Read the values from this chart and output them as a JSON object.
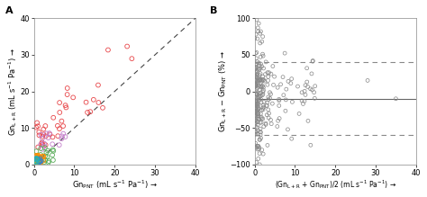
{
  "panel_A": {
    "label": "A",
    "xlabel": "Gn$_{\\mathrm{PNT}}$ (mL s$^{-1}$ Pa$^{-1}$) →",
    "ylabel": "Gn$_{\\mathrm{L+R}}$ (mL s$^{-1}$ Pa$^{-1}$) →",
    "xlim": [
      0,
      40
    ],
    "ylim": [
      0,
      40
    ],
    "xticks": [
      0,
      10,
      20,
      30,
      40
    ],
    "yticks": [
      0,
      10,
      20,
      30,
      40
    ]
  },
  "panel_B": {
    "label": "B",
    "xlabel": "(Gn$_{\\mathrm{L+R}}$ + Gn$_{\\mathrm{PNT}}$)/2 (mL s$^{-1}$ Pa$^{-1}$) →",
    "ylabel": "Gn$_{\\mathrm{L+R}}$ − Gn$_{\\mathrm{PNT}}$ (%) →",
    "xlim": [
      0,
      40
    ],
    "ylim": [
      -100,
      100
    ],
    "xticks": [
      0,
      10,
      20,
      30,
      40
    ],
    "yticks": [
      -100,
      -50,
      0,
      50,
      100
    ],
    "mean_line": -10,
    "upper_loa": 40,
    "lower_loa": -60
  }
}
